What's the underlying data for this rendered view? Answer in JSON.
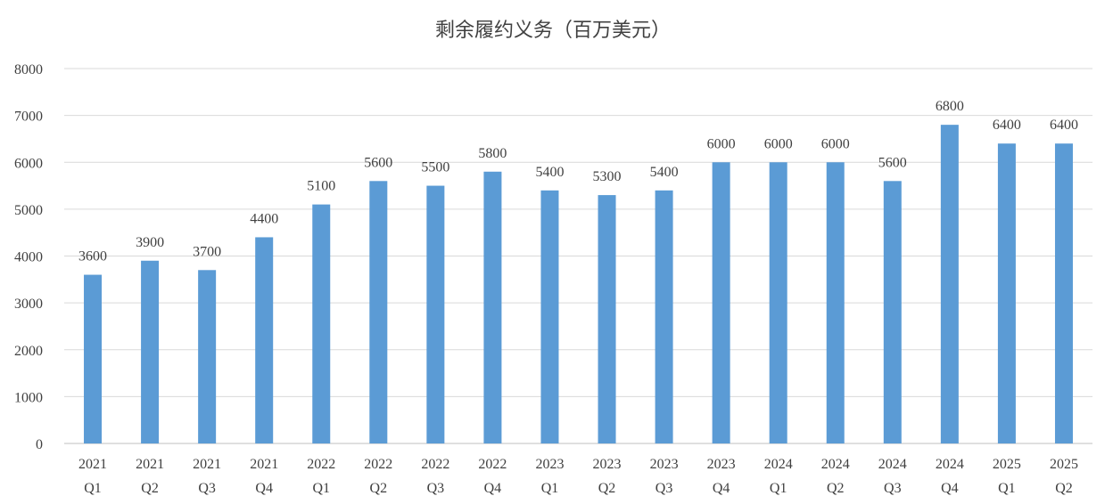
{
  "chart_data": {
    "type": "bar",
    "title": "剩余履约义务（百万美元）",
    "xlabel": "",
    "ylabel": "",
    "categories": [
      [
        "2021",
        "Q1"
      ],
      [
        "2021",
        "Q2"
      ],
      [
        "2021",
        "Q3"
      ],
      [
        "2021",
        "Q4"
      ],
      [
        "2022",
        "Q1"
      ],
      [
        "2022",
        "Q2"
      ],
      [
        "2022",
        "Q3"
      ],
      [
        "2022",
        "Q4"
      ],
      [
        "2023",
        "Q1"
      ],
      [
        "2023",
        "Q2"
      ],
      [
        "2023",
        "Q3"
      ],
      [
        "2023",
        "Q4"
      ],
      [
        "2024",
        "Q1"
      ],
      [
        "2024",
        "Q2"
      ],
      [
        "2024",
        "Q3"
      ],
      [
        "2024",
        "Q4"
      ],
      [
        "2025",
        "Q1"
      ],
      [
        "2025",
        "Q2"
      ]
    ],
    "values": [
      3600,
      3900,
      3700,
      4400,
      5100,
      5600,
      5500,
      5800,
      5400,
      5300,
      5400,
      6000,
      6000,
      6000,
      5600,
      6800,
      6400,
      6400
    ],
    "ylim": [
      0,
      8000
    ],
    "yticks": [
      "0",
      "1000",
      "2000",
      "3000",
      "4000",
      "5000",
      "6000",
      "7000",
      "8000"
    ],
    "grid": true,
    "legend": "none",
    "bar_color": "#5b9bd5"
  }
}
